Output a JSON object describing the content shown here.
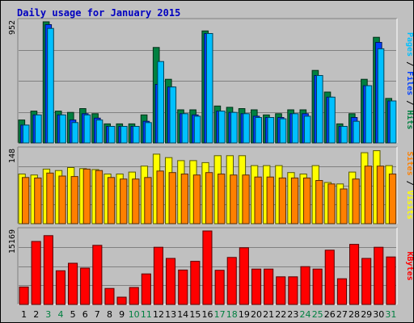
{
  "title": "Daily usage for January 2015",
  "colors": {
    "background": "#c0c0c0",
    "panel": "#c0c0c0",
    "title": "#0000c0",
    "pages": "#00c0ff",
    "files": "#0040ff",
    "hits": "#008040",
    "visits": "#ffff00",
    "sites": "#ff8000",
    "kbytes": "#ff0000",
    "weekend": "#008040",
    "weekday": "#000000"
  },
  "chart_data": [
    {
      "type": "bar",
      "name": "hits-files-pages",
      "categories": [
        "1",
        "2",
        "3",
        "4",
        "5",
        "6",
        "7",
        "8",
        "9",
        "10",
        "11",
        "12",
        "13",
        "14",
        "15",
        "16",
        "17",
        "18",
        "19",
        "20",
        "21",
        "22",
        "23",
        "24",
        "25",
        "26",
        "27",
        "28",
        "29",
        "30",
        "31"
      ],
      "ymax_label": "952",
      "ylim": [
        0,
        952
      ],
      "axis_label_parts": [
        {
          "text": "Pages",
          "key": "pages"
        },
        {
          "text": " / ",
          "key": "sep"
        },
        {
          "text": "Files",
          "key": "files"
        },
        {
          "text": " / ",
          "key": "sep"
        },
        {
          "text": "Hits",
          "key": "hits"
        }
      ],
      "series": [
        {
          "name": "Hits",
          "values": [
            180,
            250,
            952,
            250,
            240,
            270,
            230,
            150,
            150,
            150,
            220,
            750,
            500,
            260,
            260,
            880,
            290,
            280,
            270,
            260,
            220,
            230,
            260,
            260,
            570,
            400,
            150,
            230,
            500,
            830,
            350
          ]
        },
        {
          "name": "Files",
          "values": [
            140,
            220,
            930,
            220,
            180,
            230,
            195,
            130,
            130,
            130,
            170,
            460,
            440,
            230,
            220,
            860,
            250,
            240,
            230,
            210,
            200,
            200,
            230,
            230,
            530,
            360,
            130,
            200,
            450,
            790,
            330
          ]
        },
        {
          "name": "Pages",
          "values": [
            140,
            220,
            900,
            220,
            160,
            220,
            180,
            130,
            130,
            130,
            160,
            640,
            440,
            230,
            210,
            860,
            250,
            240,
            230,
            200,
            200,
            190,
            230,
            210,
            530,
            360,
            130,
            170,
            450,
            740,
            330
          ]
        }
      ]
    },
    {
      "type": "bar",
      "name": "visits-sites",
      "categories": [
        "1",
        "2",
        "3",
        "4",
        "5",
        "6",
        "7",
        "8",
        "9",
        "10",
        "11",
        "12",
        "13",
        "14",
        "15",
        "16",
        "17",
        "18",
        "19",
        "20",
        "21",
        "22",
        "23",
        "24",
        "25",
        "26",
        "27",
        "28",
        "29",
        "30",
        "31"
      ],
      "ymax_label": "148",
      "ylim": [
        0,
        148
      ],
      "axis_label_parts": [
        {
          "text": "Sites",
          "key": "sites"
        },
        {
          "text": " / ",
          "key": "sep"
        },
        {
          "text": "Visits",
          "key": "visits"
        }
      ],
      "series": [
        {
          "name": "Visits",
          "values": [
            100,
            98,
            110,
            107,
            113,
            111,
            109,
            100,
            100,
            104,
            116,
            140,
            133,
            127,
            127,
            123,
            137,
            137,
            137,
            117,
            117,
            117,
            103,
            100,
            117,
            83,
            80,
            104,
            143,
            147,
            117
          ]
        },
        {
          "name": "Sites",
          "values": [
            93,
            92,
            102,
            96,
            95,
            110,
            107,
            93,
            90,
            90,
            93,
            106,
            103,
            100,
            98,
            103,
            100,
            98,
            98,
            94,
            94,
            92,
            92,
            92,
            87,
            80,
            70,
            90,
            116,
            116,
            100
          ]
        }
      ]
    },
    {
      "type": "bar",
      "name": "kbytes",
      "categories": [
        "1",
        "2",
        "3",
        "4",
        "5",
        "6",
        "7",
        "8",
        "9",
        "10",
        "11",
        "12",
        "13",
        "14",
        "15",
        "16",
        "17",
        "18",
        "19",
        "20",
        "21",
        "22",
        "23",
        "24",
        "25",
        "26",
        "27",
        "28",
        "29",
        "30",
        "31"
      ],
      "ymax_label": "15169",
      "ylim": [
        0,
        15169
      ],
      "axis_label_parts": [
        {
          "text": "KBytes",
          "key": "kbytes"
        }
      ],
      "series": [
        {
          "name": "KBytes",
          "values": [
            3600,
            13000,
            14200,
            6950,
            8500,
            7500,
            12200,
            3300,
            1500,
            3500,
            6300,
            11800,
            9500,
            7100,
            8900,
            15169,
            7050,
            9700,
            11700,
            7300,
            7300,
            5700,
            5700,
            7800,
            7300,
            11200,
            5300,
            12400,
            9500,
            11800,
            9800
          ]
        }
      ]
    }
  ]
}
